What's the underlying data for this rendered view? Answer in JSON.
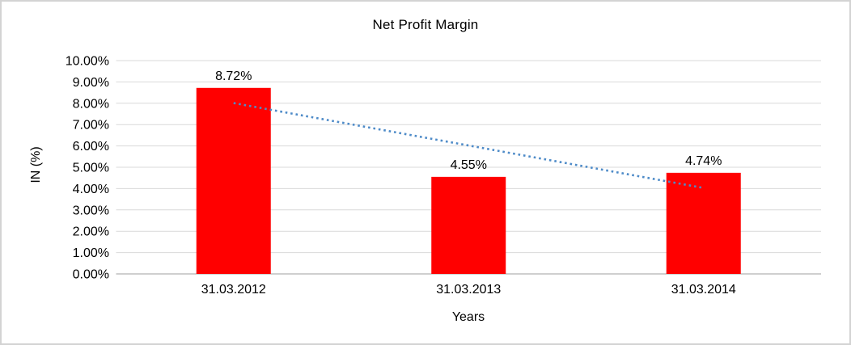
{
  "chart_data": {
    "type": "bar",
    "title": "Net Profit Margin",
    "xlabel": "Years",
    "ylabel": "IN (%)",
    "categories": [
      "31.03.2012",
      "31.03.2013",
      "31.03.2014"
    ],
    "values": [
      8.72,
      4.55,
      4.74
    ],
    "data_labels": [
      "8.72%",
      "4.55%",
      "4.74%"
    ],
    "ylim": [
      0,
      10
    ],
    "ytick_step": 1,
    "ytick_labels": [
      "0.00%",
      "1.00%",
      "2.00%",
      "3.00%",
      "4.00%",
      "5.00%",
      "6.00%",
      "7.00%",
      "8.00%",
      "9.00%",
      "10.00%"
    ],
    "grid": true,
    "legend_position": "none",
    "bar_color": "#ff0000",
    "trendline": {
      "type": "linear",
      "style": "dotted",
      "color": "#4e8bc8",
      "start_value": 8.01,
      "end_value": 4.03
    },
    "gridline_color": "#d9d9d9",
    "axis_line_color": "#bfbfbf",
    "text_color": "#000000",
    "frame_border_color": "#d3d3d3"
  }
}
